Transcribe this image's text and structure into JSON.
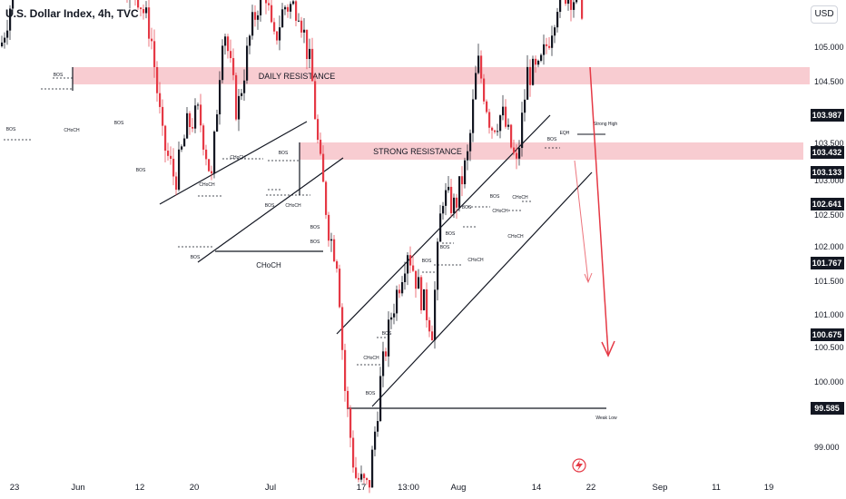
{
  "header": {
    "title": "U.S. Dollar Index, 4h, TVC",
    "currency": "USD"
  },
  "chart_data": {
    "type": "candlestick",
    "y_axis_labels": [
      "105.000",
      "104.500",
      "103.500",
      "103.000",
      "102.500",
      "102.000",
      "101.500",
      "101.000",
      "100.500",
      "100.000",
      "99.000"
    ],
    "x_axis_labels": [
      "23",
      "Jun",
      "12",
      "20",
      "Jul",
      "17",
      "13:00",
      "Aug",
      "14",
      "22",
      "Sep",
      "11",
      "19"
    ],
    "price_tags": [
      {
        "value": "103.987",
        "color": "#131722"
      },
      {
        "value": "103.432",
        "color": "#131722"
      },
      {
        "value": "103.133",
        "color": "#131722"
      },
      {
        "value": "102.641",
        "color": "#131722"
      },
      {
        "value": "101.767",
        "color": "#131722"
      },
      {
        "value": "100.675",
        "color": "#131722"
      },
      {
        "value": "99.585",
        "color": "#131722"
      }
    ],
    "zones": [
      {
        "label": "DAILY RESISTANCE",
        "color": "#f7c6cc"
      },
      {
        "label": "STRONG RESISTANCE",
        "color": "#f7c6cc"
      }
    ],
    "annotations": {
      "bos": "BOS",
      "choch": "CHoCH",
      "choch_large": "CHoCH",
      "strong_high": "Strong High",
      "weak_low": "Weak Low",
      "eqh": "EQH"
    },
    "colors": {
      "up": "#131722",
      "down": "#e53945",
      "arrow": "#e53945"
    }
  }
}
